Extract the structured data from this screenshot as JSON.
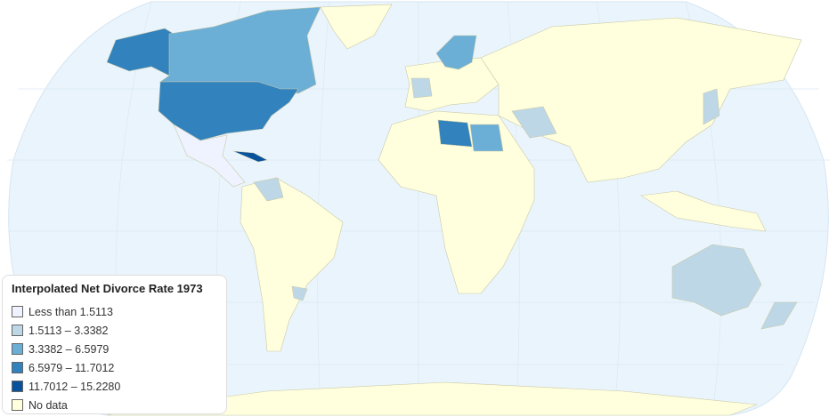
{
  "legend": {
    "title": "Interpolated Net Divorce Rate 1973",
    "items": [
      {
        "label": "Less than 1.5113",
        "color": "#eff3ff"
      },
      {
        "label": "1.5113 – 3.3382",
        "color": "#bdd7e7"
      },
      {
        "label": "3.3382 – 6.5979",
        "color": "#6baed6"
      },
      {
        "label": "6.5979 – 11.7012",
        "color": "#3182bd"
      },
      {
        "label": "11.7012 – 15.2280",
        "color": "#08519c"
      },
      {
        "label": "No data",
        "color": "#ffffdd"
      }
    ]
  },
  "colors": {
    "ocean": "#eaf4fc",
    "no_data": "#ffffdd"
  }
}
